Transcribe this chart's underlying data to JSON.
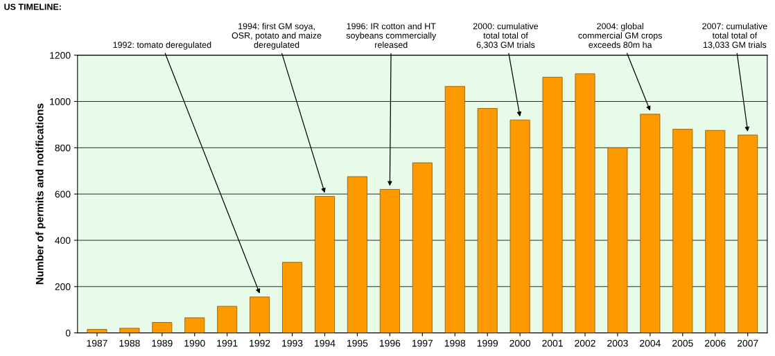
{
  "chart_data": {
    "type": "bar",
    "ylabel": "Number of permits and notifications",
    "categories": [
      "1987",
      "1988",
      "1989",
      "1990",
      "1991",
      "1992",
      "1993",
      "1994",
      "1995",
      "1996",
      "1997",
      "1998",
      "1999",
      "2000",
      "2001",
      "2002",
      "2003",
      "2004",
      "2005",
      "2006",
      "2007"
    ],
    "values": [
      15,
      20,
      45,
      65,
      115,
      155,
      305,
      590,
      675,
      620,
      735,
      1065,
      970,
      920,
      1105,
      1120,
      800,
      945,
      880,
      875,
      855
    ],
    "color": "#ff9900",
    "ylim": [
      0,
      1200
    ],
    "yticks": [
      0,
      200,
      400,
      600,
      800,
      1000,
      1200
    ],
    "grid": "y",
    "annotations": [
      "US TIMELINE:",
      {
        "text": "1992: tomato deregulated",
        "x": "1992",
        "y": 155
      },
      {
        "text": "1994: first GM soya,\nOSR, potato and maize\nderegulated",
        "x": "1994",
        "y": 590
      },
      {
        "text": "1996: IR cotton and HT\nsoybeans commercially\nreleased",
        "x": "1996",
        "y": 620
      },
      {
        "text": "2000: cumulative\ntotal total of\n6,303 GM trials",
        "x": "2000",
        "y": 920
      },
      {
        "text": "2004: global\ncommercial GM crops\nexceeds 80m ha",
        "x": "2004",
        "y": 945
      },
      {
        "text": "2007: cumulative\ntotal total of\n13,033 GM trials",
        "x": "2007",
        "y": 855
      }
    ]
  }
}
